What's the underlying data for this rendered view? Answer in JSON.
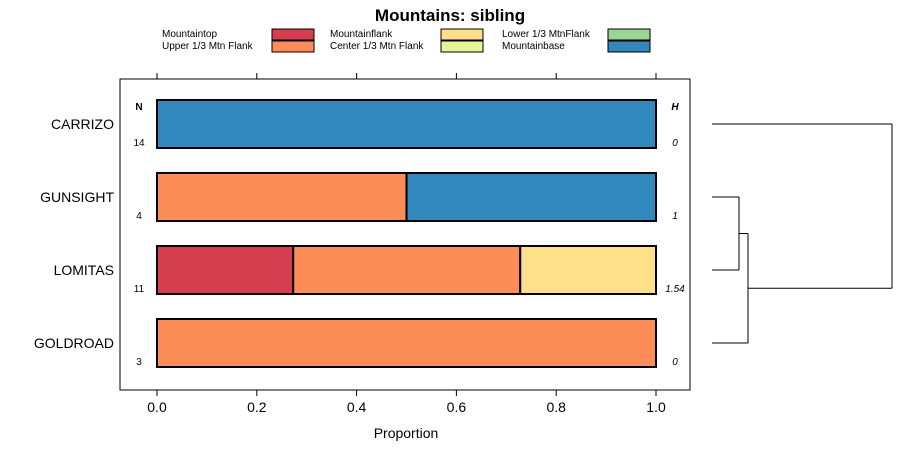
{
  "chart_data": {
    "type": "bar",
    "orientation": "horizontal",
    "stacked": true,
    "title": "Mountains: sibling",
    "xlabel": "Proportion",
    "ylabel": "",
    "xlim": [
      0,
      1
    ],
    "xticks": [
      0.0,
      0.2,
      0.4,
      0.6,
      0.8,
      1.0
    ],
    "xtick_labels": [
      "0.0",
      "0.2",
      "0.4",
      "0.6",
      "0.8",
      "1.0"
    ],
    "categories": [
      "CARRIZO",
      "GUNSIGHT",
      "LOMITAS",
      "GOLDROAD"
    ],
    "n_header": "N",
    "h_header": "H",
    "n_values": [
      "14",
      "4",
      "11",
      "3"
    ],
    "h_values": [
      "0",
      "1",
      "1.54",
      "0"
    ],
    "legend_position": "top",
    "series": [
      {
        "name": "Mountaintop",
        "color": "#d53e4f",
        "values": [
          0,
          0,
          0.273,
          0
        ]
      },
      {
        "name": "Upper 1/3 Mtn Flank",
        "color": "#fc8d59",
        "values": [
          0,
          0.5,
          0.455,
          1.0
        ]
      },
      {
        "name": "Mountainflank",
        "color": "#fee08b",
        "values": [
          0,
          0,
          0.272,
          0
        ]
      },
      {
        "name": "Center 1/3 Mtn Flank",
        "color": "#e6f598",
        "values": [
          0,
          0,
          0,
          0
        ]
      },
      {
        "name": "Lower 1/3 MtnFlank",
        "color": "#99d594",
        "values": [
          0,
          0,
          0,
          0
        ]
      },
      {
        "name": "Mountainbase",
        "color": "#3288bd",
        "values": [
          1.0,
          0.5,
          0,
          0
        ]
      }
    ],
    "dendrogram": {
      "leaves": [
        "CARRIZO",
        "GUNSIGHT",
        "LOMITAS",
        "GOLDROAD"
      ],
      "merges": [
        {
          "left": "GUNSIGHT",
          "right": "LOMITAS",
          "height": 0.15
        },
        {
          "left": "GUNSIGHT+LOMITAS",
          "right": "GOLDROAD",
          "height": 0.2
        },
        {
          "left": "CARRIZO",
          "right": "GUNSIGHT+LOMITAS+GOLDROAD",
          "height": 1.0
        }
      ]
    }
  }
}
